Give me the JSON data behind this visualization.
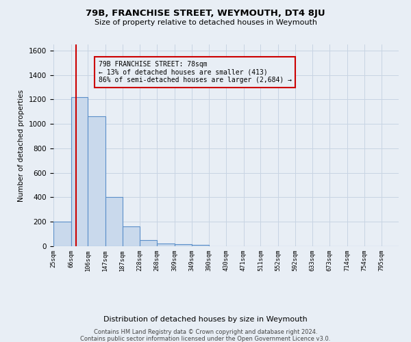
{
  "title": "79B, FRANCHISE STREET, WEYMOUTH, DT4 8JU",
  "subtitle": "Size of property relative to detached houses in Weymouth",
  "xlabel": "Distribution of detached houses by size in Weymouth",
  "ylabel": "Number of detached properties",
  "footer_line1": "Contains HM Land Registry data © Crown copyright and database right 2024.",
  "footer_line2": "Contains public sector information licensed under the Open Government Licence v3.0.",
  "annotation_line1": "79B FRANCHISE STREET: 78sqm",
  "annotation_line2": "← 13% of detached houses are smaller (413)",
  "annotation_line3": "86% of semi-detached houses are larger (2,684) →",
  "property_size": 78,
  "bar_edges": [
    25,
    66,
    106,
    147,
    187,
    228,
    268,
    309,
    349,
    390,
    430,
    471,
    511,
    552,
    592,
    633,
    673,
    714,
    754,
    795,
    835
  ],
  "bar_heights": [
    200,
    1220,
    1060,
    400,
    160,
    50,
    25,
    15,
    10,
    0,
    0,
    0,
    0,
    0,
    0,
    0,
    0,
    0,
    0,
    0
  ],
  "bar_color": "#c9d9ec",
  "bar_edge_color": "#5b8fc9",
  "vline_color": "#cc0000",
  "vline_x": 78,
  "annotation_box_color": "#cc0000",
  "grid_color": "#c8d4e3",
  "background_color": "#e8eef5",
  "ylim": [
    0,
    1650
  ],
  "yticks": [
    0,
    200,
    400,
    600,
    800,
    1000,
    1200,
    1400,
    1600
  ]
}
